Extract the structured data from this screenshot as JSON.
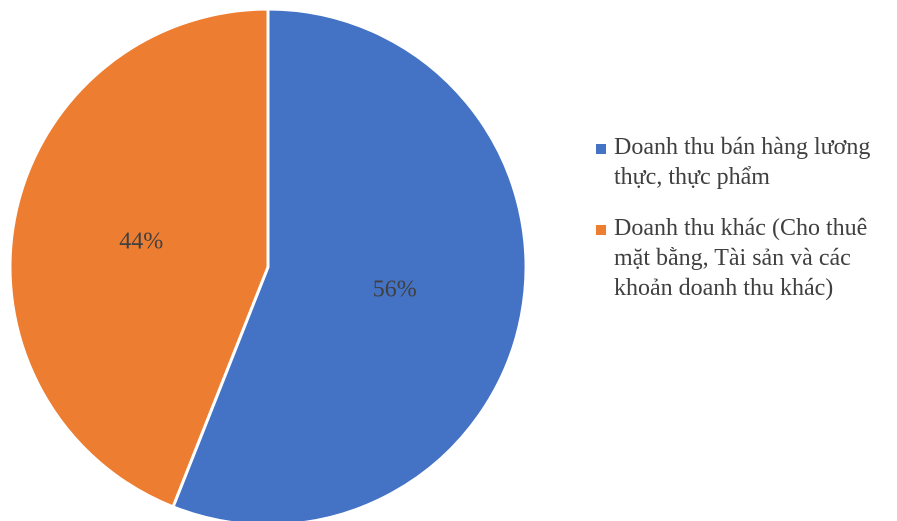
{
  "chart_data": {
    "type": "pie",
    "title": "",
    "slices": [
      {
        "label": "Doanh thu bán hàng lương thực, thực phẩm",
        "value": 56,
        "display": "56%",
        "color": "#4472C4"
      },
      {
        "label": "Doanh thu khác (Cho thuê mặt bằng, Tài sản và các khoản doanh thu khác)",
        "value": 44,
        "display": "44%",
        "color": "#ED7D31"
      }
    ],
    "legend_position": "right"
  }
}
